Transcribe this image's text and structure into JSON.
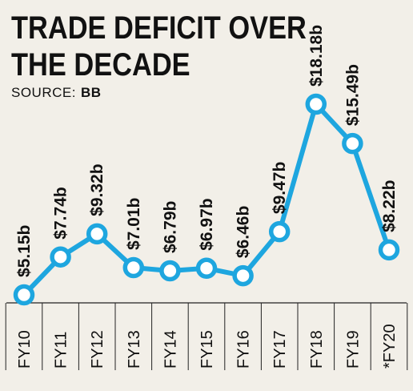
{
  "header": {
    "title_line1": "TRADE DEFICIT OVER",
    "title_line2": "THE DECADE",
    "source_label": "SOURCE:",
    "source_name": "BB"
  },
  "colors": {
    "line": "#1ea6df",
    "marker_fill": "#ffffff",
    "text": "#111111",
    "background": "#f2efe8",
    "axis": "#222222"
  },
  "chart_data": {
    "type": "line",
    "title": "TRADE DEFICIT OVER THE DECADE",
    "categories": [
      "FY10",
      "FY11",
      "FY12",
      "FY13",
      "FY14",
      "FY15",
      "FY16",
      "FY17",
      "FY18",
      "FY19",
      "*FY20"
    ],
    "series": [
      {
        "values": [
          5.15,
          7.74,
          9.32,
          7.01,
          6.79,
          6.97,
          6.46,
          9.47,
          18.18,
          15.49,
          8.22
        ],
        "data_labels": [
          "$5.15b",
          "$7.74b",
          "$9.32b",
          "$7.01b",
          "$6.79b",
          "$6.97b",
          "$6.46b",
          "$9.47b",
          "$18.18b",
          "$15.49b",
          "$8.22b"
        ]
      }
    ],
    "xlabel": "",
    "ylabel": "",
    "grid": false,
    "legend": "none"
  }
}
